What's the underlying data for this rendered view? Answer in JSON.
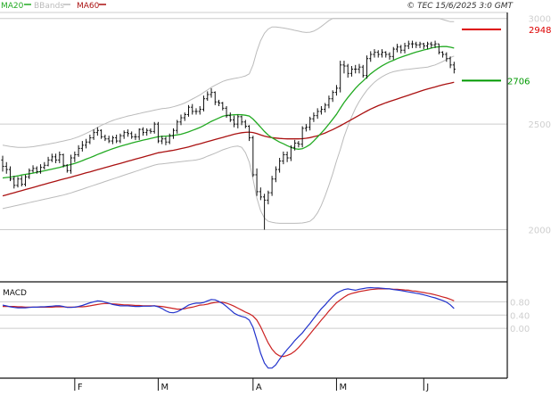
{
  "legend": [
    {
      "label": "MA20",
      "color": "#22aa22"
    },
    {
      "label": "BBands",
      "color": "#bbbbbb"
    },
    {
      "label": "MA60",
      "color": "#aa1111"
    }
  ],
  "copyright": "© TEC 15/6/2025 3:0 GMT",
  "colors": {
    "price": "#111111",
    "ma20": "#22aa22",
    "bbands": "#bbbbbb",
    "ma60": "#aa1111",
    "macd": "#2233cc",
    "signal": "#cc2222",
    "grid": "#cccccc",
    "resistance": "#dd0000",
    "support": "#009900"
  },
  "chart_data": [
    {
      "type": "line",
      "name": "price",
      "y_ticks": [
        "3000",
        "2500",
        "2000"
      ],
      "ylim": [
        1770,
        3020
      ],
      "x_ticks": [
        {
          "label": "F",
          "index": 19
        },
        {
          "label": "M",
          "index": 41
        },
        {
          "label": "A",
          "index": 66
        },
        {
          "label": "M",
          "index": 88
        },
        {
          "label": "J",
          "index": 111
        }
      ],
      "levels": [
        {
          "label": "2948",
          "value": 2948,
          "kind": "resistance"
        },
        {
          "label": "2706",
          "value": 2706,
          "kind": "support"
        }
      ],
      "candles": [
        [
          2330,
          2300,
          2285,
          2240,
          2210,
          2240,
          2215,
          2250,
          2280,
          2290,
          2275,
          2295,
          2305,
          2330,
          2345,
          2330,
          2355,
          2305,
          2280,
          2340,
          2355,
          2385,
          2400,
          2415,
          2435,
          2460,
          2470,
          2440,
          2430,
          2420,
          2435,
          2420,
          2445,
          2460,
          2455,
          2440,
          2440,
          2475,
          2460,
          2470,
          2465,
          2500,
          2420,
          2430,
          2415,
          2445,
          2470,
          2510,
          2530,
          2545,
          2580,
          2560,
          2560,
          2570,
          2620,
          2640,
          2650,
          2605,
          2600,
          2575,
          2540,
          2520,
          2500,
          2535,
          2510,
          2490,
          2435,
          2260,
          2180,
          2155,
          2140,
          2175,
          2240,
          2285,
          2325,
          2355,
          2340,
          2390,
          2410,
          2405,
          2480,
          2485,
          2525,
          2540,
          2560,
          2570,
          2590,
          2620,
          2650,
          2670,
          2780,
          2775,
          2740,
          2760,
          2760,
          2770,
          2730,
          2810,
          2830,
          2840,
          2830,
          2840,
          2830,
          2820,
          2855,
          2865,
          2850,
          2870,
          2880,
          2880,
          2875,
          2880,
          2870,
          2880,
          2875,
          2880,
          2840,
          2830,
          2810,
          2780
        ],
        [
          2300,
          2285,
          2240,
          2210,
          2240,
          2215,
          2250,
          2280,
          2290,
          2275,
          2295,
          2305,
          2330,
          2345,
          2330,
          2355,
          2305,
          2280,
          2340,
          2355,
          2385,
          2400,
          2415,
          2435,
          2460,
          2470,
          2440,
          2430,
          2420,
          2435,
          2420,
          2445,
          2460,
          2455,
          2440,
          2440,
          2475,
          2460,
          2470,
          2465,
          2500,
          2420,
          2430,
          2415,
          2445,
          2470,
          2510,
          2530,
          2545,
          2580,
          2560,
          2560,
          2570,
          2620,
          2640,
          2650,
          2605,
          2600,
          2575,
          2540,
          2520,
          2500,
          2535,
          2510,
          2490,
          2435,
          2260,
          2180,
          2155,
          2140,
          2175,
          2240,
          2285,
          2325,
          2355,
          2340,
          2390,
          2410,
          2405,
          2480,
          2485,
          2525,
          2540,
          2560,
          2570,
          2590,
          2620,
          2650,
          2670,
          2780,
          2775,
          2740,
          2760,
          2760,
          2770,
          2730,
          2810,
          2830,
          2840,
          2830,
          2840,
          2830,
          2820,
          2855,
          2865,
          2850,
          2870,
          2880,
          2880,
          2875,
          2880,
          2870,
          2880,
          2875,
          2880,
          2840,
          2830,
          2810,
          2780,
          2760
        ],
        [
          2350,
          2320,
          2300,
          2255,
          2250,
          2255,
          2260,
          2290,
          2305,
          2300,
          2310,
          2320,
          2345,
          2360,
          2360,
          2370,
          2360,
          2310,
          2355,
          2370,
          2400,
          2420,
          2430,
          2450,
          2475,
          2485,
          2475,
          2450,
          2445,
          2445,
          2450,
          2455,
          2470,
          2475,
          2465,
          2455,
          2480,
          2485,
          2480,
          2480,
          2510,
          2510,
          2445,
          2440,
          2455,
          2480,
          2520,
          2545,
          2555,
          2590,
          2595,
          2575,
          2585,
          2635,
          2655,
          2670,
          2655,
          2615,
          2605,
          2585,
          2555,
          2540,
          2545,
          2540,
          2520,
          2495,
          2445,
          2290,
          2200,
          2170,
          2185,
          2255,
          2300,
          2340,
          2370,
          2370,
          2400,
          2425,
          2420,
          2490,
          2500,
          2535,
          2555,
          2575,
          2585,
          2600,
          2635,
          2660,
          2685,
          2800,
          2800,
          2785,
          2775,
          2780,
          2785,
          2780,
          2825,
          2845,
          2855,
          2850,
          2855,
          2845,
          2840,
          2865,
          2880,
          2875,
          2885,
          2895,
          2895,
          2890,
          2890,
          2885,
          2890,
          2890,
          2895,
          2880,
          2845,
          2840,
          2820,
          2795
        ],
        [
          2275,
          2265,
          2230,
          2195,
          2200,
          2205,
          2205,
          2240,
          2270,
          2265,
          2265,
          2285,
          2300,
          2320,
          2315,
          2315,
          2295,
          2270,
          2265,
          2320,
          2345,
          2370,
          2385,
          2405,
          2425,
          2445,
          2430,
          2420,
          2410,
          2405,
          2410,
          2410,
          2430,
          2440,
          2430,
          2425,
          2425,
          2445,
          2445,
          2455,
          2455,
          2410,
          2405,
          2400,
          2405,
          2430,
          2455,
          2495,
          2515,
          2535,
          2545,
          2545,
          2545,
          2560,
          2610,
          2625,
          2590,
          2585,
          2565,
          2530,
          2510,
          2485,
          2480,
          2495,
          2480,
          2420,
          2250,
          2160,
          2140,
          2000,
          2120,
          2160,
          2225,
          2270,
          2310,
          2320,
          2325,
          2375,
          2390,
          2390,
          2465,
          2470,
          2510,
          2525,
          2545,
          2555,
          2575,
          2605,
          2635,
          2650,
          2740,
          2720,
          2725,
          2740,
          2740,
          2720,
          2715,
          2795,
          2815,
          2815,
          2815,
          2815,
          2805,
          2805,
          2840,
          2835,
          2835,
          2855,
          2860,
          2860,
          2860,
          2855,
          2855,
          2860,
          2860,
          2830,
          2815,
          2795,
          2765,
          2740
        ]
      ],
      "ma20": [
        2245,
        2247,
        2249,
        2252,
        2255,
        2259,
        2262,
        2265,
        2268,
        2272,
        2275,
        2279,
        2283,
        2287,
        2291,
        2295,
        2300,
        2304,
        2309,
        2314,
        2320,
        2327,
        2334,
        2341,
        2348,
        2356,
        2363,
        2370,
        2377,
        2383,
        2389,
        2395,
        2400,
        2405,
        2410,
        2415,
        2419,
        2424,
        2428,
        2432,
        2436,
        2440,
        2442,
        2443,
        2444,
        2446,
        2449,
        2452,
        2457,
        2463,
        2470,
        2477,
        2484,
        2493,
        2503,
        2513,
        2521,
        2529,
        2537,
        2541,
        2543,
        2544,
        2545,
        2544,
        2542,
        2538,
        2524,
        2505,
        2486,
        2465,
        2448,
        2435,
        2425,
        2415,
        2407,
        2398,
        2390,
        2383,
        2381,
        2383,
        2392,
        2403,
        2420,
        2439,
        2458,
        2478,
        2500,
        2523,
        2546,
        2575,
        2602,
        2626,
        2648,
        2669,
        2688,
        2704,
        2722,
        2738,
        2752,
        2764,
        2776,
        2786,
        2795,
        2802,
        2810,
        2817,
        2823,
        2829,
        2835,
        2841,
        2846,
        2851,
        2855,
        2860,
        2864,
        2866,
        2867,
        2867,
        2864,
        2860
      ],
      "bb_upper": [
        2400,
        2397,
        2394,
        2392,
        2390,
        2390,
        2390,
        2391,
        2393,
        2396,
        2399,
        2402,
        2405,
        2409,
        2412,
        2416,
        2420,
        2424,
        2428,
        2434,
        2440,
        2448,
        2456,
        2465,
        2474,
        2484,
        2494,
        2502,
        2510,
        2517,
        2523,
        2528,
        2533,
        2538,
        2542,
        2546,
        2550,
        2554,
        2558,
        2562,
        2566,
        2570,
        2573,
        2575,
        2578,
        2582,
        2587,
        2593,
        2600,
        2609,
        2619,
        2628,
        2638,
        2650,
        2662,
        2674,
        2684,
        2693,
        2702,
        2708,
        2712,
        2716,
        2719,
        2723,
        2728,
        2738,
        2780,
        2845,
        2895,
        2930,
        2950,
        2960,
        2960,
        2958,
        2955,
        2952,
        2948,
        2944,
        2940,
        2936,
        2934,
        2935,
        2940,
        2950,
        2962,
        2976,
        2990,
        3000,
        3000,
        3000,
        3000,
        3000,
        3000,
        3000,
        3000,
        3000,
        3000,
        3000,
        3000,
        3000,
        3000,
        3000,
        3000,
        3000,
        3000,
        3000,
        3000,
        3000,
        3000,
        3000,
        3000,
        3000,
        3000,
        3000,
        3000,
        3000,
        2995,
        2990,
        2985,
        2985
      ],
      "bb_lower": [
        2100,
        2104,
        2108,
        2112,
        2116,
        2120,
        2124,
        2128,
        2132,
        2136,
        2140,
        2144,
        2148,
        2152,
        2156,
        2160,
        2164,
        2169,
        2174,
        2180,
        2186,
        2192,
        2198,
        2204,
        2210,
        2216,
        2222,
        2228,
        2234,
        2240,
        2246,
        2252,
        2258,
        2264,
        2270,
        2276,
        2282,
        2288,
        2294,
        2300,
        2306,
        2310,
        2312,
        2314,
        2316,
        2318,
        2320,
        2322,
        2324,
        2326,
        2328,
        2330,
        2334,
        2340,
        2348,
        2355,
        2362,
        2370,
        2378,
        2384,
        2390,
        2394,
        2396,
        2390,
        2365,
        2320,
        2240,
        2150,
        2090,
        2055,
        2040,
        2035,
        2032,
        2030,
        2030,
        2030,
        2030,
        2030,
        2031,
        2032,
        2035,
        2040,
        2055,
        2080,
        2115,
        2160,
        2210,
        2265,
        2325,
        2380,
        2440,
        2490,
        2535,
        2575,
        2608,
        2635,
        2660,
        2680,
        2698,
        2712,
        2724,
        2734,
        2742,
        2748,
        2752,
        2755,
        2758,
        2760,
        2762,
        2764,
        2766,
        2768,
        2770,
        2775,
        2780,
        2788,
        2796,
        2806,
        2815,
        2822
      ],
      "ma60": [
        2160,
        2165,
        2170,
        2175,
        2180,
        2185,
        2190,
        2195,
        2200,
        2205,
        2210,
        2215,
        2220,
        2225,
        2230,
        2235,
        2240,
        2244,
        2249,
        2254,
        2259,
        2264,
        2269,
        2274,
        2279,
        2284,
        2289,
        2294,
        2299,
        2304,
        2309,
        2314,
        2319,
        2324,
        2329,
        2334,
        2339,
        2344,
        2349,
        2354,
        2359,
        2364,
        2367,
        2370,
        2373,
        2376,
        2380,
        2384,
        2388,
        2392,
        2397,
        2402,
        2407,
        2412,
        2417,
        2422,
        2427,
        2432,
        2437,
        2442,
        2447,
        2452,
        2456,
        2459,
        2461,
        2462,
        2460,
        2455,
        2449,
        2443,
        2439,
        2436,
        2434,
        2432,
        2431,
        2430,
        2430,
        2430,
        2430,
        2431,
        2433,
        2436,
        2440,
        2445,
        2451,
        2458,
        2466,
        2474,
        2483,
        2492,
        2502,
        2512,
        2522,
        2532,
        2542,
        2552,
        2562,
        2571,
        2579,
        2587,
        2594,
        2601,
        2607,
        2613,
        2619,
        2625,
        2631,
        2637,
        2643,
        2649,
        2655,
        2661,
        2666,
        2671,
        2676,
        2681,
        2686,
        2690,
        2694,
        2698
      ]
    },
    {
      "type": "line",
      "name": "MACD",
      "y_ticks": [
        "0.80",
        "0.40",
        "0.00"
      ],
      "ylim": [
        -1.45,
        1.35
      ],
      "macd": [
        0.7,
        0.68,
        0.65,
        0.63,
        0.62,
        0.62,
        0.62,
        0.63,
        0.64,
        0.64,
        0.65,
        0.65,
        0.66,
        0.67,
        0.68,
        0.68,
        0.66,
        0.63,
        0.63,
        0.64,
        0.66,
        0.69,
        0.73,
        0.77,
        0.8,
        0.83,
        0.82,
        0.79,
        0.76,
        0.72,
        0.7,
        0.68,
        0.68,
        0.68,
        0.67,
        0.66,
        0.66,
        0.67,
        0.67,
        0.67,
        0.68,
        0.65,
        0.6,
        0.53,
        0.48,
        0.47,
        0.5,
        0.56,
        0.63,
        0.7,
        0.74,
        0.76,
        0.76,
        0.78,
        0.83,
        0.87,
        0.86,
        0.81,
        0.75,
        0.66,
        0.56,
        0.46,
        0.4,
        0.36,
        0.33,
        0.25,
        0.03,
        -0.35,
        -0.75,
        -1.05,
        -1.2,
        -1.2,
        -1.1,
        -0.93,
        -0.78,
        -0.64,
        -0.51,
        -0.37,
        -0.25,
        -0.14,
        0.01,
        0.15,
        0.3,
        0.45,
        0.59,
        0.71,
        0.84,
        0.96,
        1.06,
        1.12,
        1.17,
        1.19,
        1.17,
        1.15,
        1.18,
        1.2,
        1.22,
        1.23,
        1.22,
        1.22,
        1.21,
        1.2,
        1.19,
        1.17,
        1.16,
        1.14,
        1.12,
        1.1,
        1.08,
        1.06,
        1.04,
        1.01,
        0.98,
        0.95,
        0.92,
        0.88,
        0.84,
        0.79,
        0.71,
        0.6
      ],
      "signal": [
        0.66,
        0.66,
        0.66,
        0.66,
        0.65,
        0.65,
        0.64,
        0.64,
        0.64,
        0.64,
        0.64,
        0.64,
        0.64,
        0.64,
        0.65,
        0.65,
        0.65,
        0.64,
        0.64,
        0.64,
        0.65,
        0.65,
        0.66,
        0.68,
        0.7,
        0.72,
        0.74,
        0.75,
        0.75,
        0.74,
        0.73,
        0.72,
        0.71,
        0.71,
        0.7,
        0.69,
        0.69,
        0.68,
        0.68,
        0.68,
        0.68,
        0.67,
        0.66,
        0.64,
        0.62,
        0.6,
        0.58,
        0.58,
        0.59,
        0.62,
        0.64,
        0.67,
        0.7,
        0.71,
        0.73,
        0.76,
        0.78,
        0.79,
        0.79,
        0.76,
        0.72,
        0.67,
        0.61,
        0.55,
        0.49,
        0.44,
        0.37,
        0.25,
        0.05,
        -0.2,
        -0.44,
        -0.63,
        -0.76,
        -0.83,
        -0.85,
        -0.82,
        -0.77,
        -0.69,
        -0.58,
        -0.45,
        -0.31,
        -0.17,
        -0.03,
        0.11,
        0.25,
        0.38,
        0.52,
        0.65,
        0.77,
        0.86,
        0.94,
        1.01,
        1.05,
        1.08,
        1.11,
        1.13,
        1.15,
        1.17,
        1.18,
        1.19,
        1.19,
        1.19,
        1.19,
        1.18,
        1.18,
        1.17,
        1.16,
        1.15,
        1.13,
        1.12,
        1.1,
        1.08,
        1.06,
        1.04,
        1.01,
        0.98,
        0.95,
        0.92,
        0.88,
        0.83
      ]
    }
  ]
}
